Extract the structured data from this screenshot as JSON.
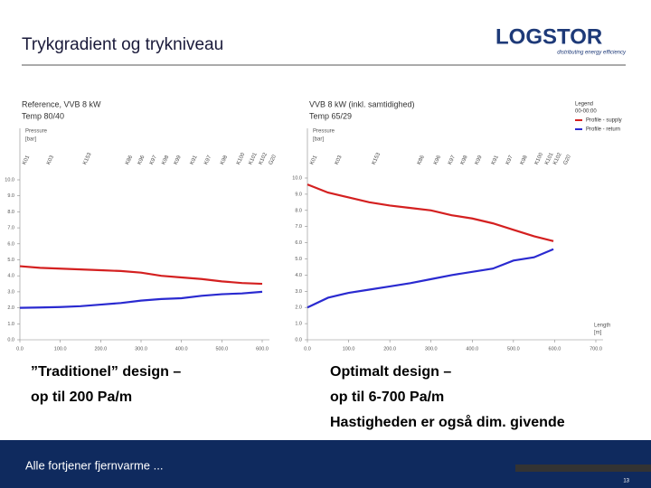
{
  "slide": {
    "title": "Trykgradient og trykniveau",
    "logo": "LOGSTOR",
    "tagline": "distributing energy efficiency",
    "caption_left": [
      "”Traditionel” design –",
      "op til 200 Pa/m"
    ],
    "caption_right": [
      "Optimalt design –",
      "op til 6-700 Pa/m",
      "Hastigheden er også dim. givende"
    ],
    "footer": "Alle fortjener fjernvarme ...",
    "page": "13"
  },
  "chart_data": [
    {
      "type": "line",
      "title": "Reference, VVB 8 kW",
      "subtitle": "Temp 80/40",
      "y_label": "Pressure",
      "y_unit": "[bar]",
      "x": [
        0,
        50,
        100,
        150,
        200,
        250,
        300,
        350,
        400,
        450,
        500,
        550,
        600
      ],
      "series": [
        {
          "name": "Profile - supply",
          "color": "#d42020",
          "values": [
            4.6,
            4.5,
            4.45,
            4.4,
            4.35,
            4.3,
            4.2,
            4.0,
            3.9,
            3.8,
            3.65,
            3.55,
            3.5
          ]
        },
        {
          "name": "Profile - return",
          "color": "#2a2ad0",
          "values": [
            2.0,
            2.02,
            2.05,
            2.1,
            2.2,
            2.3,
            2.45,
            2.55,
            2.6,
            2.75,
            2.85,
            2.9,
            3.0
          ]
        }
      ],
      "xlim": [
        0,
        600
      ],
      "ylim": [
        0,
        10
      ],
      "xticks": [
        {
          "value": 0,
          "label": "0.0"
        },
        {
          "value": 100,
          "label": "100.0"
        },
        {
          "value": 200,
          "label": "200.0"
        },
        {
          "value": 300,
          "label": "300.0"
        },
        {
          "value": 400,
          "label": "400.0"
        },
        {
          "value": 500,
          "label": "500.0"
        },
        {
          "value": 600,
          "label": "600.0"
        }
      ],
      "yticks": [
        {
          "value": 0,
          "label": "0.0"
        },
        {
          "value": 1,
          "label": "1.0"
        },
        {
          "value": 2,
          "label": "2.0"
        },
        {
          "value": 3,
          "label": "3.0"
        },
        {
          "value": 4,
          "label": "4.0"
        },
        {
          "value": 5,
          "label": "5.0"
        },
        {
          "value": 6,
          "label": "6.0"
        },
        {
          "value": 7,
          "label": "7.0"
        },
        {
          "value": 8,
          "label": "8.0"
        },
        {
          "value": 9,
          "label": "9.0"
        },
        {
          "value": 10,
          "label": "10.0"
        }
      ],
      "nodes": [
        {
          "value": 10,
          "label": "K01"
        },
        {
          "value": 70,
          "label": "K03"
        },
        {
          "value": 160,
          "label": "K153"
        },
        {
          "value": 265,
          "label": "K86"
        },
        {
          "value": 295,
          "label": "K96"
        },
        {
          "value": 325,
          "label": "K97"
        },
        {
          "value": 355,
          "label": "K98"
        },
        {
          "value": 385,
          "label": "K99"
        },
        {
          "value": 425,
          "label": "K91"
        },
        {
          "value": 460,
          "label": "K97"
        },
        {
          "value": 500,
          "label": "K98"
        },
        {
          "value": 540,
          "label": "K100"
        },
        {
          "value": 570,
          "label": "K101"
        },
        {
          "value": 595,
          "label": "K102"
        },
        {
          "value": 620,
          "label": "G20"
        }
      ],
      "grid": false
    },
    {
      "type": "line",
      "title": "VVB 8 kW (inkl. samtidighed)",
      "subtitle": "Temp 65/29",
      "y_label": "Pressure",
      "y_unit": "[bar]",
      "x_label": "Length",
      "x_unit": "[m]",
      "legend_title": "Legend",
      "legend_subtitle": "00-00:00",
      "x": [
        0,
        50,
        100,
        150,
        200,
        250,
        300,
        350,
        400,
        450,
        500,
        550,
        597
      ],
      "series": [
        {
          "name": "Profile - supply",
          "color": "#d42020",
          "values": [
            9.6,
            9.1,
            8.8,
            8.5,
            8.3,
            8.15,
            8.0,
            7.7,
            7.5,
            7.2,
            6.8,
            6.4,
            6.1
          ]
        },
        {
          "name": "Profile - return",
          "color": "#2a2ad0",
          "values": [
            2.0,
            2.6,
            2.9,
            3.1,
            3.3,
            3.5,
            3.75,
            4.0,
            4.2,
            4.4,
            4.9,
            5.1,
            5.6
          ]
        }
      ],
      "xlim": [
        0,
        700
      ],
      "ylim": [
        0,
        10
      ],
      "xticks": [
        {
          "value": 0,
          "label": "0.0"
        },
        {
          "value": 100,
          "label": "100.0"
        },
        {
          "value": 200,
          "label": "200.0"
        },
        {
          "value": 300,
          "label": "300.0"
        },
        {
          "value": 400,
          "label": "400.0"
        },
        {
          "value": 500,
          "label": "500.0"
        },
        {
          "value": 600,
          "label": "600.0"
        },
        {
          "value": 700,
          "label": "700.0"
        }
      ],
      "yticks": [
        {
          "value": 0,
          "label": "0.0"
        },
        {
          "value": 1,
          "label": "1.0"
        },
        {
          "value": 2,
          "label": "2.0"
        },
        {
          "value": 3,
          "label": "3.0"
        },
        {
          "value": 4,
          "label": "4.0"
        },
        {
          "value": 5,
          "label": "5.0"
        },
        {
          "value": 6,
          "label": "6.0"
        },
        {
          "value": 7,
          "label": "7.0"
        },
        {
          "value": 8,
          "label": "8.0"
        },
        {
          "value": 9,
          "label": "9.0"
        },
        {
          "value": 10,
          "label": "10.0"
        }
      ],
      "nodes": [
        {
          "value": 10,
          "label": "K01"
        },
        {
          "value": 70,
          "label": "K03"
        },
        {
          "value": 160,
          "label": "K153"
        },
        {
          "value": 270,
          "label": "K86"
        },
        {
          "value": 310,
          "label": "K96"
        },
        {
          "value": 345,
          "label": "K97"
        },
        {
          "value": 375,
          "label": "K98"
        },
        {
          "value": 410,
          "label": "K99"
        },
        {
          "value": 450,
          "label": "K91"
        },
        {
          "value": 485,
          "label": "K97"
        },
        {
          "value": 520,
          "label": "K98"
        },
        {
          "value": 555,
          "label": "K100"
        },
        {
          "value": 580,
          "label": "K101"
        },
        {
          "value": 600,
          "label": "K102"
        },
        {
          "value": 625,
          "label": "G20"
        }
      ],
      "grid": false
    }
  ]
}
